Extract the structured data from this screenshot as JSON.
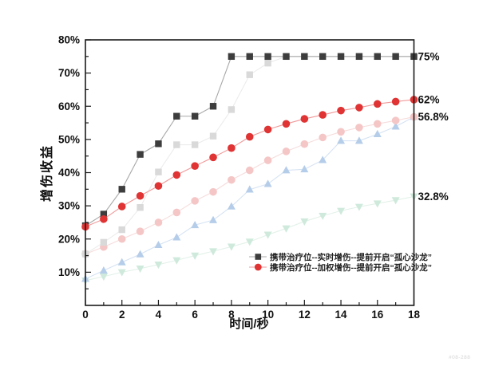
{
  "watermark": "#08-288",
  "chart_data": {
    "type": "line",
    "title": "",
    "xlabel": "时间/秒",
    "ylabel": "增伤收益",
    "xlim": [
      0,
      18
    ],
    "ylim": [
      0,
      80
    ],
    "x_major_tick_step": 2,
    "x_minor_tick_step": 1,
    "y_major_tick_step": 10,
    "y_minor_tick_step": 5,
    "y_tick_labels": [
      "10%",
      "20%",
      "30%",
      "40%",
      "50%",
      "60%",
      "70%",
      "80%"
    ],
    "x_tick_labels": [
      "0",
      "2",
      "4",
      "6",
      "8",
      "10",
      "12",
      "14",
      "16",
      "18"
    ],
    "grid": false,
    "legend_position": "inside-bottom-right",
    "x": [
      0,
      1,
      2,
      3,
      4,
      5,
      6,
      7,
      8,
      9,
      10,
      11,
      12,
      13,
      14,
      15,
      16,
      17,
      18
    ],
    "series": [
      {
        "id": "faded-weighted-low",
        "legend_label": "",
        "in_legend": false,
        "marker": "triangle-down",
        "marker_color": "#cfeadc",
        "line_color": "#e3f2e9",
        "values": [
          7.5,
          8.7,
          10,
          11.1,
          12.3,
          13.6,
          15,
          16.3,
          17.7,
          19.2,
          21.3,
          23.2,
          25.3,
          27,
          28.5,
          29.7,
          30.7,
          31.7,
          32.8
        ]
      },
      {
        "id": "faded-realtime-low",
        "legend_label": "",
        "in_legend": false,
        "marker": "triangle-up",
        "marker_color": "#b5cde9",
        "line_color": "#d6e3f3",
        "values": [
          8,
          10.5,
          13,
          15.4,
          18.2,
          20.5,
          24.2,
          25.7,
          29.8,
          34.9,
          36.6,
          40.7,
          41,
          43.8,
          49.6,
          49.6,
          51.6,
          53.9,
          56.8
        ]
      },
      {
        "id": "faded-weighted-mid",
        "legend_label": "",
        "in_legend": false,
        "marker": "circle",
        "marker_color": "#f5c6c6",
        "line_color": "#f7dcdc",
        "values": [
          15.5,
          17.6,
          20,
          22.3,
          25,
          28,
          31.5,
          34.2,
          37.8,
          40.7,
          43.7,
          46.4,
          48.6,
          50.6,
          52.3,
          53.6,
          54.7,
          55.7,
          56.8
        ]
      },
      {
        "id": "faded-realtime-mid",
        "legend_label": "",
        "in_legend": false,
        "marker": "square",
        "marker_color": "#d9d9d9",
        "line_color": "#ececec",
        "values": [
          15.5,
          19,
          22.8,
          29.5,
          40.2,
          48.4,
          48.4,
          51,
          59,
          69.5,
          73,
          75,
          75,
          75,
          75,
          75,
          75,
          75,
          75
        ]
      },
      {
        "id": "realtime-with-healer-preopen",
        "legend_label": "携带治疗位--实时增伤--提前开启“孤心沙龙”",
        "in_legend": true,
        "marker": "square",
        "marker_color": "#3d3d3d",
        "line_color": "#a8a8a8",
        "values": [
          24,
          27.5,
          35,
          45.5,
          48.7,
          57,
          57,
          60,
          75,
          75,
          75,
          75,
          75,
          75,
          75,
          75,
          75,
          75,
          75
        ]
      },
      {
        "id": "weighted-with-healer-preopen",
        "legend_label": "携带治疗位--加权增伤--提前开启“孤心沙龙”",
        "in_legend": true,
        "marker": "circle",
        "marker_color": "#e03333",
        "line_color": "#f19999",
        "values": [
          23.7,
          26,
          29.8,
          33,
          36,
          39.3,
          42,
          44.6,
          47.4,
          50.8,
          53,
          54.7,
          56.2,
          57.4,
          58.7,
          59.6,
          60.7,
          61.4,
          62
        ]
      }
    ],
    "annotations": [
      {
        "label": "75%",
        "value": 75
      },
      {
        "label": "62%",
        "value": 62
      },
      {
        "label": "56.8%",
        "value": 56.8
      },
      {
        "label": "32.8%",
        "value": 32.8
      }
    ]
  }
}
